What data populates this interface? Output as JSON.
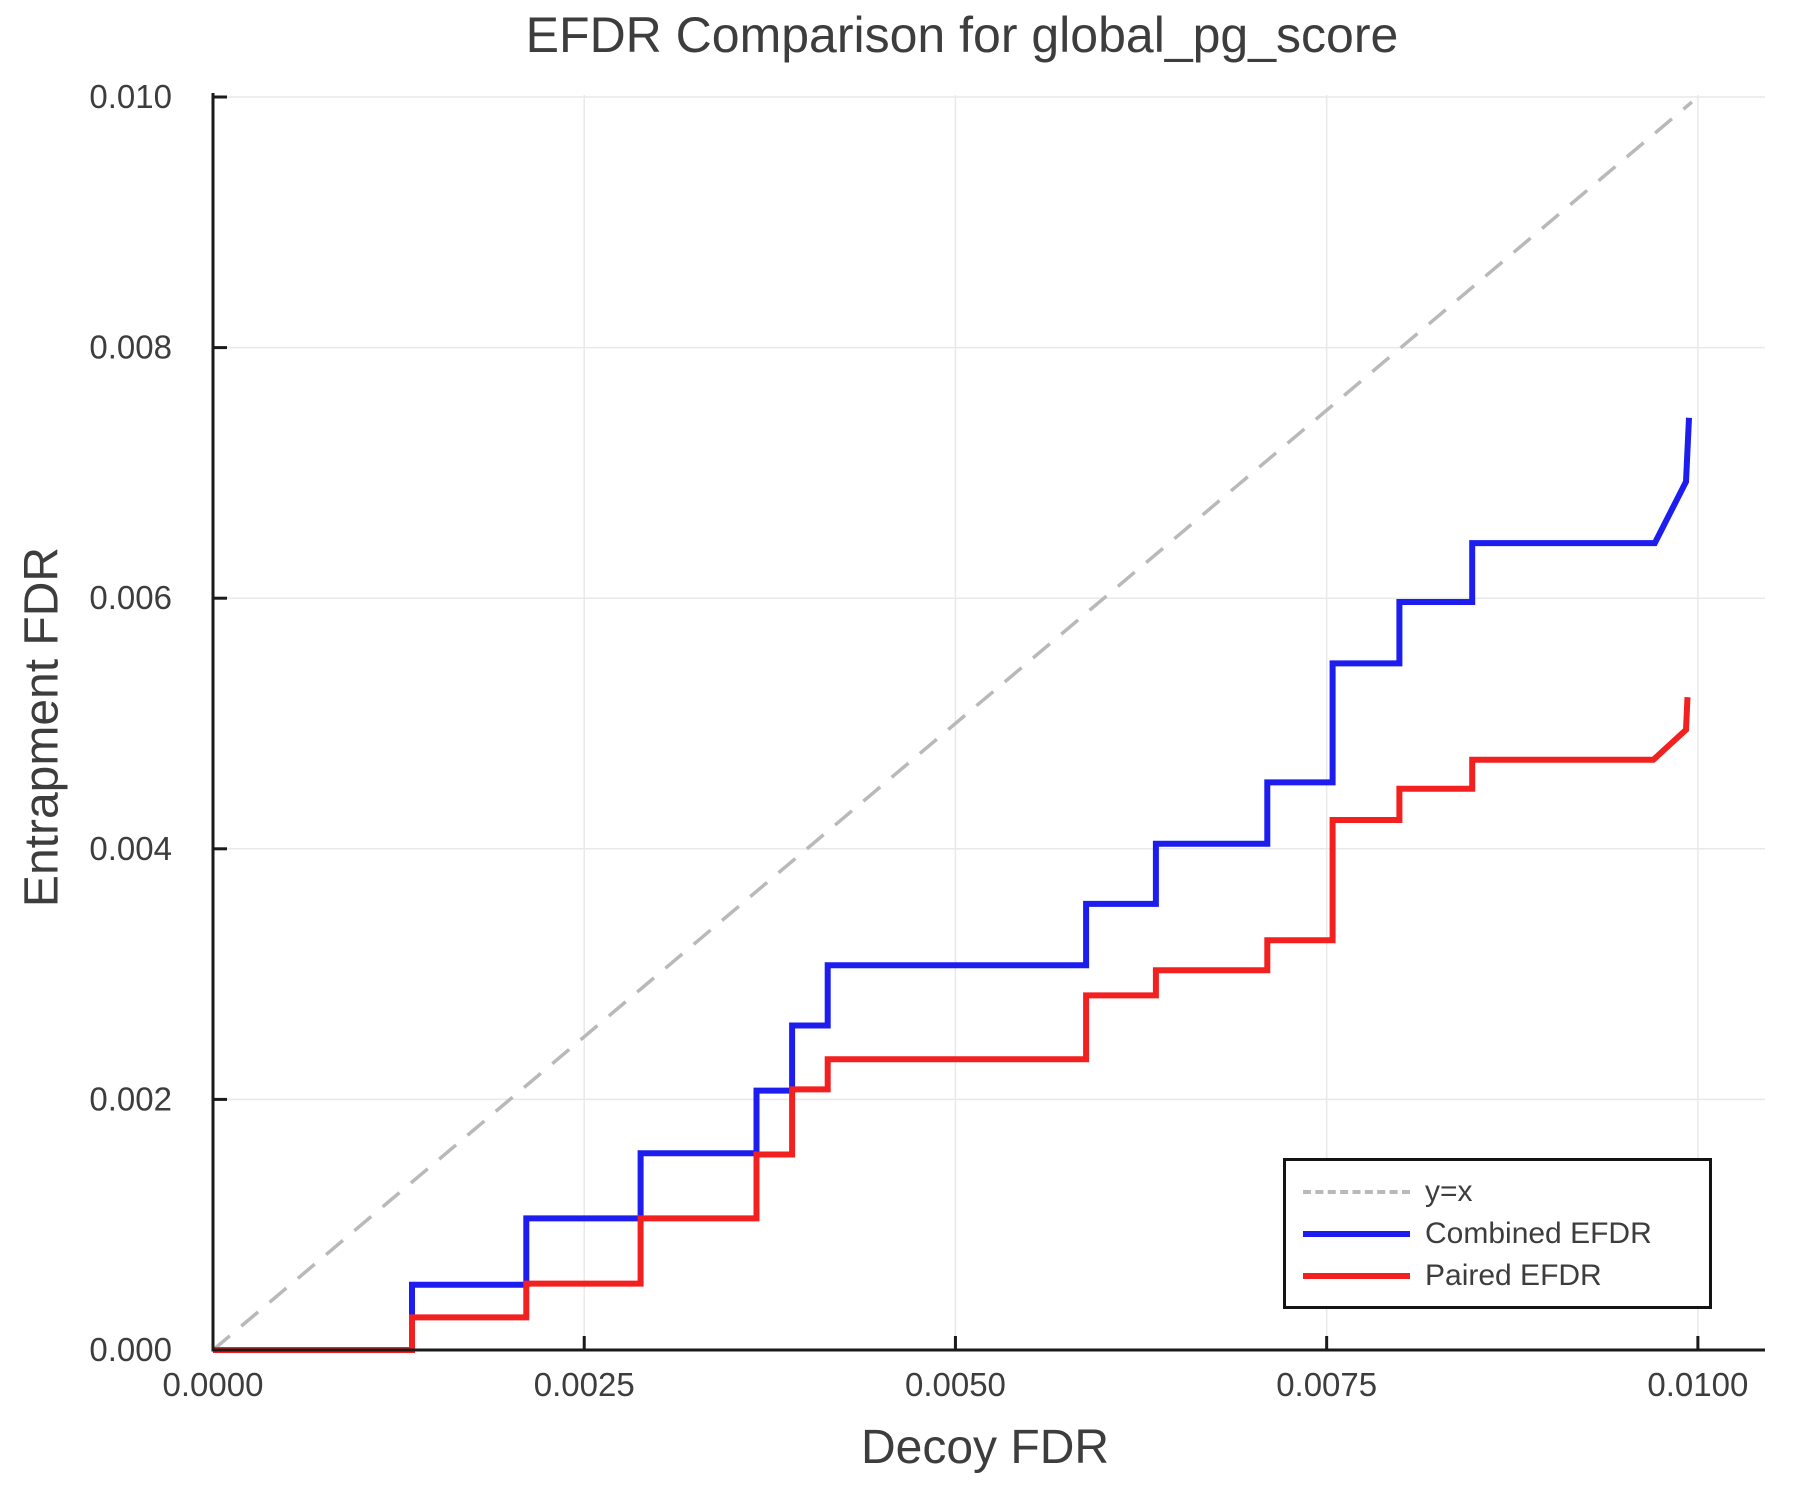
{
  "chart_data": {
    "type": "line",
    "title": "EFDR Comparison for global_pg_score",
    "xlabel": "Decoy FDR",
    "ylabel": "Entrapment FDR",
    "xlim": [
      0,
      0.01045
    ],
    "ylim": [
      0,
      0.01002
    ],
    "grid": true,
    "x_ticks": {
      "values": [
        0.0,
        0.0025,
        0.005,
        0.0075,
        0.01
      ],
      "labels": [
        "0.0000",
        "0.0025",
        "0.0050",
        "0.0075",
        "0.0100"
      ]
    },
    "y_ticks": {
      "values": [
        0.0,
        0.002,
        0.004,
        0.006,
        0.008,
        0.01
      ],
      "labels": [
        "0.000",
        "0.002",
        "0.004",
        "0.006",
        "0.008",
        "0.010"
      ]
    },
    "legend": {
      "position": "lower right"
    },
    "series": [
      {
        "name": "y=x",
        "style": "dashed",
        "color": "#b9b9b9",
        "width": 3.5,
        "points": [
          [
            0,
            0
          ],
          [
            0.00996,
            0.00996
          ]
        ]
      },
      {
        "name": "Combined EFDR",
        "style": "solid",
        "color": "#1d1df0",
        "width": 6,
        "points": [
          [
            0,
            0
          ],
          [
            0.00134,
            0
          ],
          [
            0.00134,
            0.00052
          ],
          [
            0.00211,
            0.00052
          ],
          [
            0.00211,
            0.00105
          ],
          [
            0.00288,
            0.00105
          ],
          [
            0.00288,
            0.00157
          ],
          [
            0.00366,
            0.00157
          ],
          [
            0.00366,
            0.00207
          ],
          [
            0.0039,
            0.00207
          ],
          [
            0.0039,
            0.00259
          ],
          [
            0.00414,
            0.00259
          ],
          [
            0.00414,
            0.00307
          ],
          [
            0.00588,
            0.00307
          ],
          [
            0.00588,
            0.00356
          ],
          [
            0.00635,
            0.00356
          ],
          [
            0.00635,
            0.00404
          ],
          [
            0.0071,
            0.00404
          ],
          [
            0.0071,
            0.00453
          ],
          [
            0.00754,
            0.00453
          ],
          [
            0.00754,
            0.00548
          ],
          [
            0.00799,
            0.00548
          ],
          [
            0.00799,
            0.00597
          ],
          [
            0.00848,
            0.00597
          ],
          [
            0.00848,
            0.00644
          ],
          [
            0.00971,
            0.00644
          ],
          [
            0.00992,
            0.00693
          ],
          [
            0.00994,
            0.00744
          ]
        ]
      },
      {
        "name": "Paired EFDR",
        "style": "solid",
        "color": "#f32020",
        "width": 6,
        "points": [
          [
            0,
            0
          ],
          [
            0.00134,
            0
          ],
          [
            0.00134,
            0.00026
          ],
          [
            0.00211,
            0.00026
          ],
          [
            0.00211,
            0.00053
          ],
          [
            0.00288,
            0.00053
          ],
          [
            0.00288,
            0.00105
          ],
          [
            0.00366,
            0.00105
          ],
          [
            0.00366,
            0.00156
          ],
          [
            0.0039,
            0.00156
          ],
          [
            0.0039,
            0.00208
          ],
          [
            0.00414,
            0.00208
          ],
          [
            0.00414,
            0.00232
          ],
          [
            0.00588,
            0.00232
          ],
          [
            0.00588,
            0.00283
          ],
          [
            0.00635,
            0.00283
          ],
          [
            0.00635,
            0.00303
          ],
          [
            0.0071,
            0.00303
          ],
          [
            0.0071,
            0.00327
          ],
          [
            0.00754,
            0.00327
          ],
          [
            0.00754,
            0.00423
          ],
          [
            0.00799,
            0.00423
          ],
          [
            0.00799,
            0.00448
          ],
          [
            0.00848,
            0.00448
          ],
          [
            0.00848,
            0.00471
          ],
          [
            0.0097,
            0.00471
          ],
          [
            0.00992,
            0.00495
          ],
          [
            0.00993,
            0.00521
          ]
        ]
      }
    ],
    "colors": {
      "grid": "#e9e9e9",
      "spine": "#1a1a1a",
      "tick_text": "#3d3d3d"
    }
  }
}
